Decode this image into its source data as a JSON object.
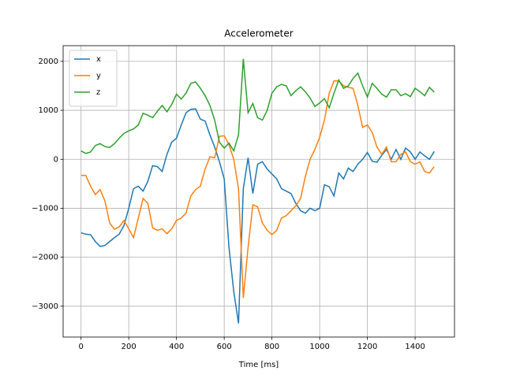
{
  "chart_data": {
    "type": "line",
    "title": "Accelerometer",
    "xlabel": "Time [ms]",
    "x": [
      0,
      20,
      40,
      60,
      80,
      100,
      120,
      140,
      160,
      180,
      200,
      220,
      240,
      260,
      280,
      300,
      320,
      340,
      360,
      380,
      400,
      420,
      440,
      460,
      480,
      500,
      520,
      540,
      560,
      580,
      600,
      620,
      640,
      660,
      680,
      700,
      720,
      740,
      760,
      780,
      800,
      820,
      840,
      860,
      880,
      900,
      920,
      940,
      960,
      980,
      1000,
      1020,
      1040,
      1060,
      1080,
      1100,
      1120,
      1140,
      1160,
      1180,
      1200,
      1220,
      1240,
      1260,
      1280,
      1300,
      1320,
      1340,
      1360,
      1380,
      1400,
      1420,
      1440,
      1460,
      1480
    ],
    "series": [
      {
        "name": "x",
        "color": "#1f77b4",
        "values": [
          -1500,
          -1530,
          -1540,
          -1680,
          -1780,
          -1760,
          -1680,
          -1600,
          -1530,
          -1350,
          -1000,
          -600,
          -550,
          -650,
          -450,
          -130,
          -150,
          -250,
          100,
          350,
          430,
          700,
          950,
          1020,
          1030,
          820,
          780,
          500,
          250,
          -50,
          -400,
          -1800,
          -2700,
          -3350,
          -600,
          30,
          -700,
          -100,
          -50,
          -200,
          -300,
          -400,
          -600,
          -650,
          -700,
          -900,
          -1050,
          -1100,
          -1000,
          -1050,
          -1000,
          -520,
          -560,
          -750,
          -280,
          -400,
          -180,
          -250,
          -100,
          0,
          140,
          -40,
          -60,
          80,
          200,
          0,
          200,
          0,
          230,
          150,
          0,
          150,
          70,
          0,
          160
        ]
      },
      {
        "name": "y",
        "color": "#ff7f0e",
        "values": [
          -330,
          -330,
          -550,
          -720,
          -620,
          -850,
          -1300,
          -1430,
          -1380,
          -1250,
          -1420,
          -1600,
          -1200,
          -800,
          -900,
          -1400,
          -1450,
          -1420,
          -1520,
          -1420,
          -1250,
          -1200,
          -1100,
          -750,
          -620,
          -550,
          -200,
          50,
          30,
          470,
          480,
          300,
          0,
          -600,
          -2830,
          -1800,
          -930,
          -970,
          -1300,
          -1450,
          -1540,
          -1450,
          -1200,
          -1150,
          -1050,
          -950,
          -800,
          -350,
          0,
          200,
          450,
          800,
          1350,
          1600,
          1600,
          1500,
          1470,
          1450,
          1100,
          650,
          700,
          550,
          250,
          100,
          250,
          -50,
          -50,
          100,
          150,
          -50,
          -100,
          -50,
          -250,
          -280,
          -150
        ]
      },
      {
        "name": "z",
        "color": "#2ca02c",
        "values": [
          170,
          120,
          150,
          280,
          320,
          260,
          240,
          320,
          430,
          530,
          580,
          620,
          700,
          940,
          900,
          850,
          980,
          1100,
          970,
          1120,
          1330,
          1230,
          1350,
          1550,
          1580,
          1450,
          1300,
          1100,
          800,
          350,
          230,
          330,
          170,
          500,
          2050,
          950,
          1140,
          850,
          800,
          1000,
          1350,
          1480,
          1530,
          1500,
          1300,
          1400,
          1480,
          1380,
          1250,
          1080,
          1150,
          1240,
          1050,
          1350,
          1620,
          1450,
          1500,
          1650,
          1760,
          1500,
          1270,
          1550,
          1450,
          1330,
          1270,
          1420,
          1420,
          1300,
          1340,
          1280,
          1450,
          1380,
          1300,
          1470,
          1370
        ]
      }
    ],
    "xlim": [
      -75,
      1565
    ],
    "ylim": [
      -3630,
      2320
    ],
    "xticks": [
      0,
      200,
      400,
      600,
      800,
      1000,
      1200,
      1400
    ],
    "yticks": [
      {
        "value": -3000,
        "label": "−3000"
      },
      {
        "value": -2000,
        "label": "−2000"
      },
      {
        "value": -1000,
        "label": "−1000"
      },
      0,
      1000,
      2000
    ],
    "grid": true,
    "legend": "upper left"
  }
}
